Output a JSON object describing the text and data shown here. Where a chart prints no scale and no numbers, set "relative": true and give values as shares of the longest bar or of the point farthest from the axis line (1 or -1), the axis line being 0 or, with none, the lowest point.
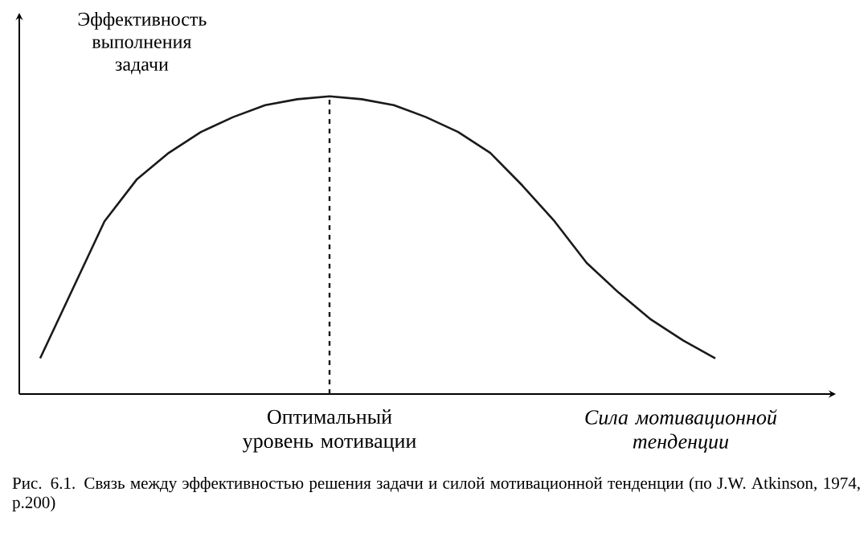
{
  "chart_data": {
    "type": "line",
    "relative": true,
    "ylabel": "Эффективность выполнения задачи",
    "xlabel": "Сила мотивационной тенденции",
    "categories": [
      null,
      null,
      null,
      null,
      null,
      null,
      null,
      null,
      null,
      null,
      null,
      null,
      null,
      null,
      null,
      null,
      null,
      null,
      null,
      null,
      null,
      null
    ],
    "series": [
      {
        "color": "#1a1a1a",
        "values": [
          0.12,
          0.35,
          0.58,
          0.72,
          0.81,
          0.88,
          0.93,
          0.97,
          0.99,
          1,
          0.99,
          0.97,
          0.93,
          0.88,
          0.81,
          0.7,
          0.58,
          0.44,
          0.34,
          0.25,
          0.18,
          0.12
        ]
      }
    ],
    "annotations": [
      "Рис. 6.1. Связь между эффективностью решения задачи и силой мотивационной тенденции (по J.W. Atkinson, 1974, p.200)",
      "Оптимальный уровень мотивации"
    ],
    "marker": "none",
    "line_style": "solid"
  }
}
